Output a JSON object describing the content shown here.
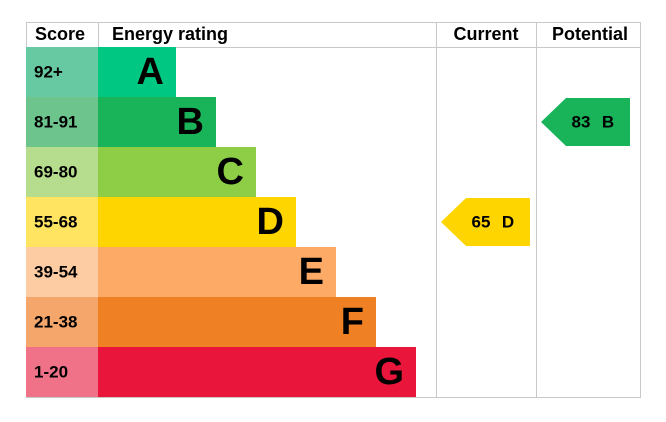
{
  "header": {
    "score": "Score",
    "rating": "Energy rating",
    "current": "Current",
    "potential": "Potential"
  },
  "rows": [
    {
      "score": "92+",
      "band": "A",
      "color": "#00c781",
      "light": "#66c9a1"
    },
    {
      "score": "81-91",
      "band": "B",
      "color": "#19b459",
      "light": "#6dc48d"
    },
    {
      "score": "69-80",
      "band": "C",
      "color": "#8dce46",
      "light": "#b6dd8d"
    },
    {
      "score": "55-68",
      "band": "D",
      "color": "#ffd500",
      "light": "#ffe462"
    },
    {
      "score": "39-54",
      "band": "E",
      "color": "#fcaa65",
      "light": "#fdcca3"
    },
    {
      "score": "21-38",
      "band": "F",
      "color": "#ef8023",
      "light": "#f4a66b"
    },
    {
      "score": "1-20",
      "band": "G",
      "color": "#e9153b",
      "light": "#f07289"
    }
  ],
  "current": {
    "value": 65,
    "band": "D",
    "color": "#ffd500"
  },
  "potential": {
    "value": 83,
    "band": "B",
    "color": "#19b459"
  }
}
